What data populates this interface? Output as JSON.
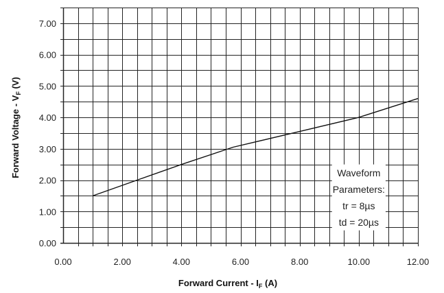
{
  "chart_data": {
    "type": "line",
    "title": "",
    "xlabel": "Forward Current - I",
    "xlabel_sub": "F",
    "xlabel_unit": " (A)",
    "ylabel": "Forward Voltage - V",
    "ylabel_sub": "F",
    "ylabel_unit": " (V)",
    "xlim": [
      0,
      12
    ],
    "ylim": [
      0,
      7.5
    ],
    "x_ticks": [
      "0.00",
      "2.00",
      "4.00",
      "6.00",
      "8.00",
      "10.00",
      "12.00"
    ],
    "y_ticks": [
      "0.00",
      "1.00",
      "2.00",
      "3.00",
      "4.00",
      "5.00",
      "6.00",
      "7.00"
    ],
    "x_grid_step": 0.5,
    "y_grid_step": 0.5,
    "grid": true,
    "series": [
      {
        "x": [
          1.0,
          2.5,
          4.0,
          5.75,
          8.0,
          10.0,
          12.0
        ],
        "values": [
          1.5,
          2.0,
          2.5,
          3.05,
          3.55,
          4.0,
          4.6
        ]
      }
    ],
    "annotation": {
      "lines": [
        "Waveform",
        "Parameters:",
        "tr = 8µs",
        "td = 20µs"
      ],
      "x_range": [
        9.0,
        11.0
      ],
      "y_range": [
        0.4,
        2.5
      ]
    }
  }
}
